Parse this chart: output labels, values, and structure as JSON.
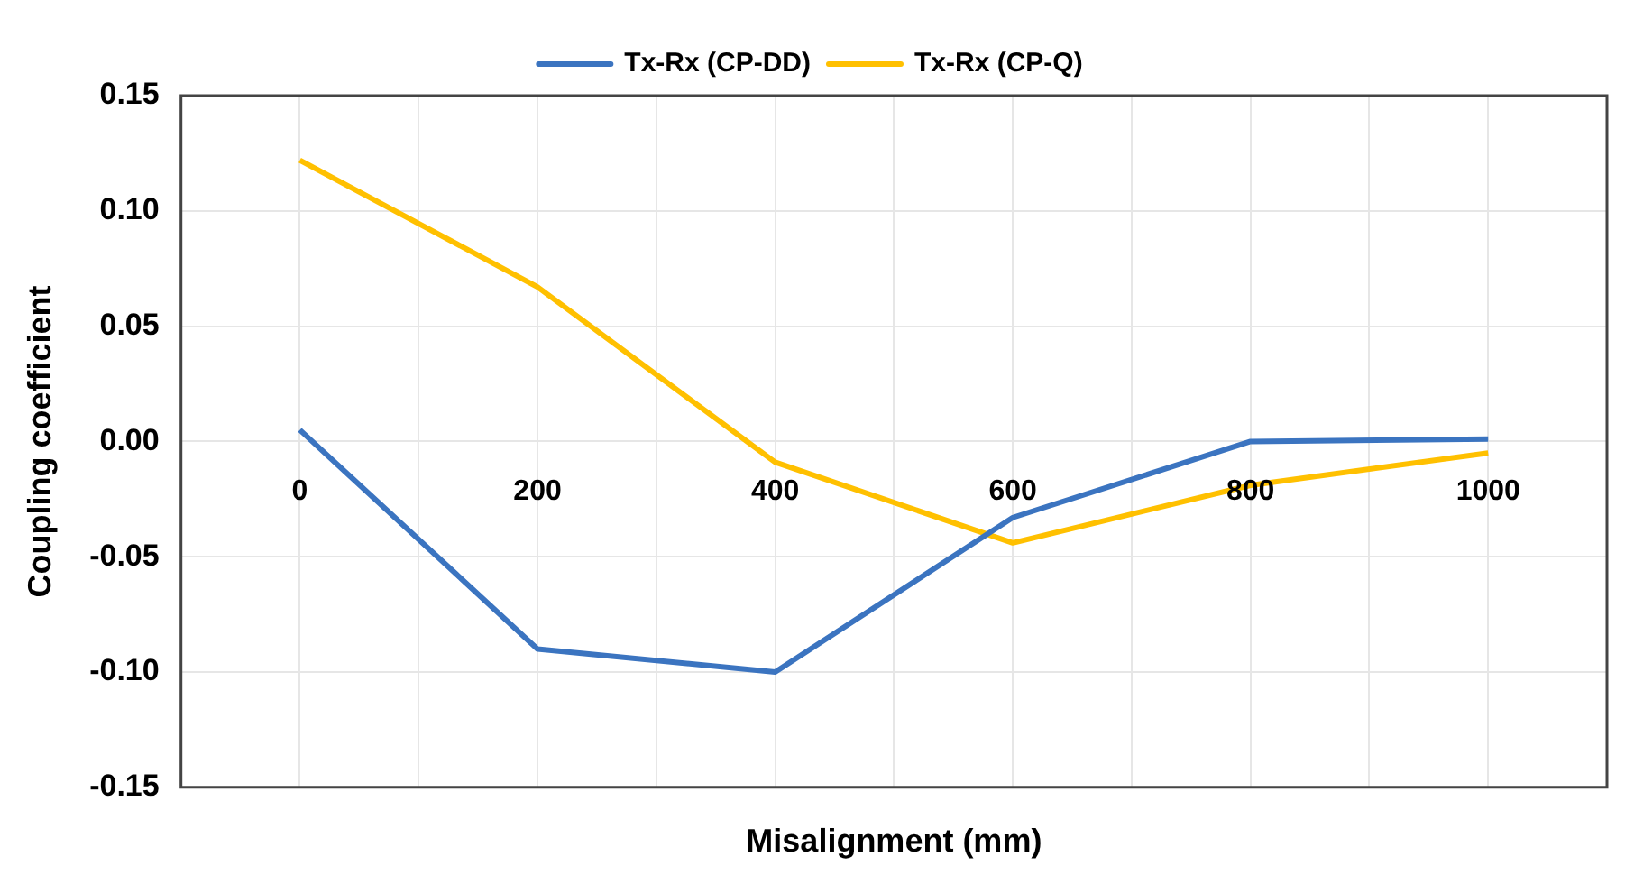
{
  "chart_data": {
    "type": "line",
    "xlabel": "Misalignment (mm)",
    "ylabel": "Coupling coefficient",
    "x": [
      0,
      200,
      400,
      600,
      800,
      1000
    ],
    "series": [
      {
        "name": "Tx-Rx (CP-DD)",
        "color": "#3b74c0",
        "values": [
          0.005,
          -0.09,
          -0.1,
          -0.033,
          0.0,
          0.001
        ]
      },
      {
        "name": "Tx-Rx (CP-Q)",
        "color": "#ffc000",
        "values": [
          0.122,
          0.067,
          -0.009,
          -0.044,
          -0.019,
          -0.005
        ]
      }
    ],
    "xlim": [
      -100,
      1100
    ],
    "xticks": [
      {
        "value": -100,
        "label": null
      },
      0,
      {
        "value": 100,
        "label": null
      },
      200,
      {
        "value": 300,
        "label": null
      },
      400,
      {
        "value": 500,
        "label": null
      },
      600,
      {
        "value": 700,
        "label": null
      },
      800,
      {
        "value": 900,
        "label": null
      },
      1000,
      {
        "value": 1100,
        "label": null
      }
    ],
    "ylim": [
      -0.15,
      0.15
    ],
    "yticks": [
      {
        "value": -0.15,
        "label": "-0.15"
      },
      {
        "value": -0.1,
        "label": "-0.10"
      },
      {
        "value": -0.05,
        "label": "-0.05"
      },
      {
        "value": 0,
        "label": "0.00"
      },
      {
        "value": 0.05,
        "label": "0.05"
      },
      {
        "value": 0.1,
        "label": "0.10"
      },
      {
        "value": 0.15,
        "label": "0.15"
      }
    ],
    "grid": true,
    "legend": "top",
    "marker": "none",
    "line_style": "solid"
  }
}
